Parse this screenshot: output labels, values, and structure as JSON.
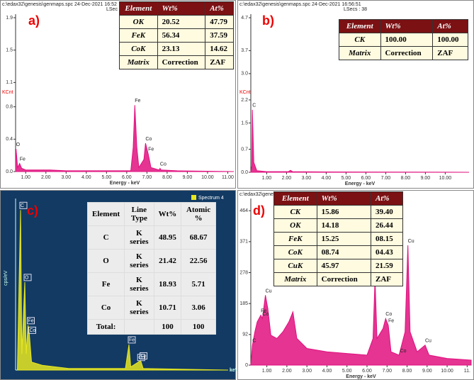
{
  "chart_data": [
    {
      "type": "line",
      "title": "a)",
      "header": "c:\\edax32\\genesis\\genmaps.spc 24-Dec-2021 16:52",
      "subheader": "LSec",
      "ylabel": "KCnt",
      "xlabel": "Energy - keV",
      "color": "#e0117f",
      "theme": "light",
      "xlim": [
        0.5,
        11.3
      ],
      "ylim": [
        0,
        1.9
      ],
      "yticks": [
        {
          "value": 0,
          "label": "0.0"
        },
        0.4,
        0.8,
        1.1,
        1.5,
        1.9
      ],
      "xticks": [
        {
          "value": 1,
          "label": "1.00"
        },
        {
          "value": 2,
          "label": "2.00"
        },
        {
          "value": 3,
          "label": "3.00"
        },
        {
          "value": 4,
          "label": "4.00"
        },
        {
          "value": 5,
          "label": "5.00"
        },
        {
          "value": 6,
          "label": "6.00"
        },
        {
          "value": 7,
          "label": "7.00"
        },
        {
          "value": 8,
          "label": "8.00"
        },
        {
          "value": 9,
          "label": "9.00"
        },
        {
          "value": 10,
          "label": "10.00"
        },
        {
          "value": 11,
          "label": "11.00"
        }
      ],
      "x": [
        0.5,
        0.52,
        0.6,
        0.7,
        0.8,
        1.0,
        1.5,
        2.2,
        3,
        4,
        5,
        6.2,
        6.32,
        6.4,
        6.5,
        6.6,
        6.85,
        6.93,
        7.06,
        7.2,
        7.6,
        7.65,
        7.7,
        8.5,
        11.3
      ],
      "values": [
        0,
        0.28,
        0.05,
        0.1,
        0.04,
        0.02,
        0.02,
        0.02,
        0.01,
        0.01,
        0.01,
        0.01,
        0.3,
        0.82,
        0.3,
        0.05,
        0.15,
        0.35,
        0.22,
        0.05,
        0.02,
        0.04,
        0.02,
        0.01,
        0
      ],
      "annotations": [
        {
          "text": "O",
          "x": 0.52
        },
        {
          "text": "Fe",
          "x": 0.7
        },
        {
          "text": "Fe",
          "x": 6.4
        },
        {
          "text": "Co",
          "x": 6.93
        },
        {
          "text": "Fe",
          "x": 7.06
        },
        {
          "text": "Co",
          "x": 7.65
        }
      ],
      "table": {
        "header": [
          "Element",
          "Wt%",
          "At%"
        ],
        "rows": [
          [
            "OK",
            "20.52",
            "47.79"
          ],
          [
            "FeK",
            "56.34",
            "37.59"
          ],
          [
            "CoK",
            "23.13",
            "14.62"
          ],
          [
            "Matrix",
            "Correction",
            "ZAF"
          ]
        ]
      }
    },
    {
      "type": "line",
      "title": "b)",
      "header": "c:\\edax32\\genesis\\genmaps.spc 24-Dec-2021 16:56:51",
      "subheader": "LSecs : 38",
      "ylabel": "KCnt",
      "xlabel": "Energy - keV",
      "color": "#e0117f",
      "theme": "light",
      "xlim": [
        0.2,
        11.2
      ],
      "ylim": [
        0,
        4.7
      ],
      "yticks": [
        {
          "value": 0,
          "label": "0.0"
        },
        0.7,
        1.5,
        2.2,
        {
          "value": 3,
          "label": "3.0"
        },
        3.7,
        4.7
      ],
      "xticks": [
        {
          "value": 1,
          "label": "1.00"
        },
        {
          "value": 2,
          "label": "2.00"
        },
        {
          "value": 3,
          "label": "3.00"
        },
        {
          "value": 4,
          "label": "4.00"
        },
        {
          "value": 5,
          "label": "5.00"
        },
        {
          "value": 6,
          "label": "6.00"
        },
        {
          "value": 7,
          "label": "7.00"
        },
        {
          "value": 8,
          "label": "8.00"
        },
        {
          "value": 9,
          "label": "9.00"
        },
        {
          "value": 10,
          "label": "10.00"
        }
      ],
      "x": [
        0.2,
        0.25,
        0.28,
        0.35,
        0.5,
        1,
        2.1,
        2.2,
        2.3,
        4,
        11.2
      ],
      "values": [
        0,
        0.2,
        1.9,
        0.3,
        0.05,
        0.02,
        0.02,
        0.06,
        0.02,
        0.01,
        0
      ],
      "annotations": [
        {
          "text": "C",
          "x": 0.28
        }
      ],
      "table": {
        "header": [
          "Element",
          "Wt%",
          "At%"
        ],
        "rows": [
          [
            "CK",
            "100.00",
            "100.00"
          ],
          [
            "Matrix",
            "Correction",
            "ZAF"
          ]
        ]
      }
    },
    {
      "type": "line",
      "title": "c)",
      "ylabel": "cps/eV",
      "xlabel": "keV",
      "series_name": "Spectrum 4",
      "color": "#e8e820",
      "theme": "dark",
      "xlim": [
        0,
        12
      ],
      "ylim": [
        0,
        1.05
      ],
      "x": [
        0.1,
        0.28,
        0.35,
        0.52,
        0.6,
        0.7,
        0.78,
        0.9,
        1.5,
        3,
        6.2,
        6.4,
        6.5,
        6.93,
        7.06,
        7.2,
        12
      ],
      "values": [
        0,
        1.0,
        0.1,
        0.55,
        0.1,
        0.28,
        0.22,
        0.05,
        0.03,
        0.01,
        0.01,
        0.16,
        0.02,
        0.05,
        0.06,
        0.01,
        0
      ],
      "annotations": [
        {
          "text": "C",
          "x": 0.28
        },
        {
          "text": "O",
          "x": 0.52
        },
        {
          "text": "Fe",
          "x": 0.7
        },
        {
          "text": "Co",
          "x": 0.78
        },
        {
          "text": "Fe",
          "x": 6.4
        },
        {
          "text": "Co",
          "x": 6.93
        },
        {
          "text": "Fe",
          "x": 7.06
        }
      ],
      "table": {
        "header": [
          "Element",
          "Line Type",
          "Wt%",
          "Atomic %"
        ],
        "rows": [
          [
            "C",
            "K series",
            "48.95",
            "68.67"
          ],
          [
            "O",
            "K series",
            "21.42",
            "22.56"
          ],
          [
            "Fe",
            "K series",
            "18.93",
            "5.71"
          ],
          [
            "Co",
            "K series",
            "10.71",
            "3.06"
          ],
          [
            "Total:",
            "",
            "100",
            "100"
          ]
        ]
      }
    },
    {
      "type": "line",
      "title": "d)",
      "header": "c:\\edax32\\genesis\\genmaps.spc",
      "xlabel": "Energy - keV",
      "color": "#e0117f",
      "theme": "light",
      "xlim": [
        0.2,
        11.2
      ],
      "ylim": [
        0,
        490
      ],
      "yticks": [
        0,
        92,
        185,
        278,
        371,
        464
      ],
      "xticks": [
        {
          "value": 1,
          "label": "1.00"
        },
        {
          "value": 2,
          "label": "2.00"
        },
        {
          "value": 3,
          "label": "3.00"
        },
        {
          "value": 4,
          "label": "4.00"
        },
        {
          "value": 5,
          "label": "5.00"
        },
        {
          "value": 6,
          "label": "6.00"
        },
        {
          "value": 7,
          "label": "7.00"
        },
        {
          "value": 8,
          "label": "8.00"
        },
        {
          "value": 9,
          "label": "9.00"
        },
        {
          "value": 10,
          "label": "10.00"
        },
        {
          "value": 11,
          "label": "11."
        }
      ],
      "x": [
        0.2,
        0.28,
        0.4,
        0.52,
        0.7,
        0.78,
        0.93,
        1.05,
        1.2,
        1.5,
        1.8,
        2.1,
        2.3,
        2.5,
        3,
        4,
        5,
        6,
        6.3,
        6.4,
        6.5,
        6.8,
        6.93,
        7.06,
        7.2,
        7.6,
        7.9,
        8.04,
        8.15,
        8.5,
        8.9,
        9.1,
        10,
        11.2
      ],
      "values": [
        0,
        60,
        100,
        130,
        150,
        140,
        210,
        170,
        90,
        80,
        100,
        130,
        160,
        80,
        50,
        40,
        35,
        30,
        80,
        260,
        80,
        110,
        140,
        120,
        40,
        30,
        100,
        360,
        100,
        40,
        60,
        30,
        20,
        15
      ],
      "annotations": [
        {
          "text": "C",
          "x": 0.28
        },
        {
          "text": "Fe",
          "x": 0.7
        },
        {
          "text": "Co",
          "x": 0.78
        },
        {
          "text": "Cu",
          "x": 0.93
        },
        {
          "text": "Fe",
          "x": 6.4
        },
        {
          "text": "Co",
          "x": 6.93
        },
        {
          "text": "Fe",
          "x": 7.06
        },
        {
          "text": "Co",
          "x": 7.65
        },
        {
          "text": "Cu",
          "x": 8.04
        },
        {
          "text": "Cu",
          "x": 8.9
        }
      ],
      "table": {
        "header": [
          "Element",
          "Wt%",
          "At%"
        ],
        "rows": [
          [
            "CK",
            "15.86",
            "39.40"
          ],
          [
            "OK",
            "14.18",
            "26.44"
          ],
          [
            "FeK",
            "15.25",
            "08.15"
          ],
          [
            "CoK",
            "08.74",
            "04.43"
          ],
          [
            "CuK",
            "45.97",
            "21.59"
          ],
          [
            "Matrix",
            "Correction",
            "ZAF"
          ]
        ]
      }
    }
  ]
}
